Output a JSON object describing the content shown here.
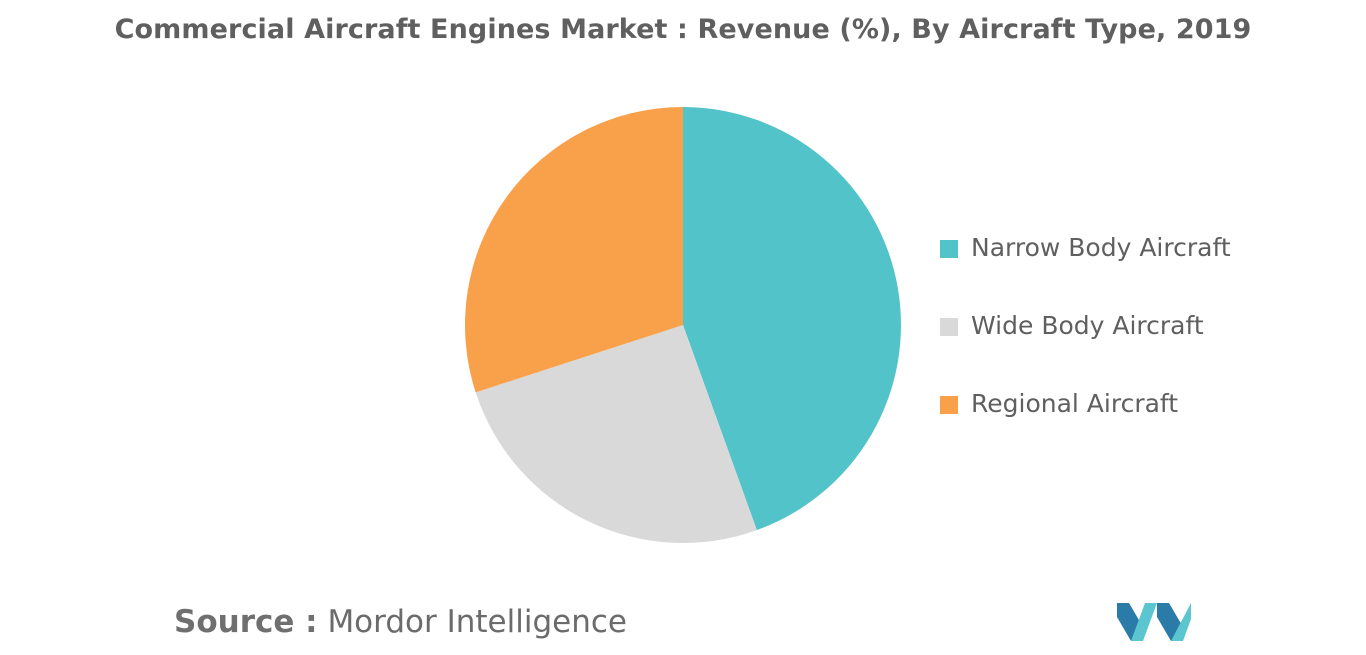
{
  "chart_data": {
    "type": "pie",
    "title": "Commercial Aircraft Engines Market : Revenue (%), By Aircraft Type, 2019",
    "categories": [
      "Narrow Body Aircraft",
      "Wide Body Aircraft",
      "Regional Aircraft"
    ],
    "values": [
      44.5,
      25.5,
      30.0
    ],
    "colors": [
      "#52c4c9",
      "#d9d9d9",
      "#f9a04b"
    ],
    "start_angle_deg": 0,
    "direction": "clockwise",
    "legend_position": "right",
    "data_labels": false
  },
  "source": {
    "label": "Source :",
    "value": "Mordor Intelligence"
  },
  "logo": {
    "icon": "mordor-intelligence-logo",
    "colors": [
      "#2b7ba8",
      "#5bc6cf"
    ]
  }
}
